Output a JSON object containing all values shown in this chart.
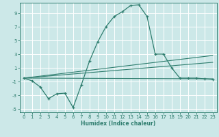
{
  "xlabel": "Humidex (Indice chaleur)",
  "bg_color": "#cce8e8",
  "grid_color": "#ffffff",
  "line_color": "#2e7d6e",
  "xlim": [
    -0.5,
    23.5
  ],
  "ylim": [
    -5.5,
    10.5
  ],
  "xticks": [
    0,
    1,
    2,
    3,
    4,
    5,
    6,
    7,
    8,
    9,
    10,
    11,
    12,
    13,
    14,
    15,
    16,
    17,
    18,
    19,
    20,
    21,
    22,
    23
  ],
  "yticks": [
    -5,
    -3,
    -1,
    1,
    3,
    5,
    7,
    9
  ],
  "curve_x": [
    0,
    1,
    2,
    3,
    4,
    5,
    6,
    7,
    8,
    9,
    10,
    11,
    12,
    13,
    14,
    15,
    16,
    17,
    18,
    19,
    20,
    21,
    22,
    23
  ],
  "curve_y": [
    -0.5,
    -0.9,
    -1.8,
    -3.5,
    -2.8,
    -2.7,
    -4.8,
    -1.5,
    2.0,
    4.8,
    7.0,
    8.5,
    9.2,
    10.1,
    10.2,
    8.5,
    3.0,
    3.0,
    1.0,
    -0.5,
    -0.5,
    -0.5,
    -0.6,
    -0.7
  ],
  "line1_x": [
    0,
    23
  ],
  "line1_y": [
    -0.5,
    2.8
  ],
  "line2_x": [
    0,
    23
  ],
  "line2_y": [
    -0.5,
    1.8
  ],
  "line3_x": [
    0,
    23
  ],
  "line3_y": [
    -0.5,
    -0.6
  ]
}
